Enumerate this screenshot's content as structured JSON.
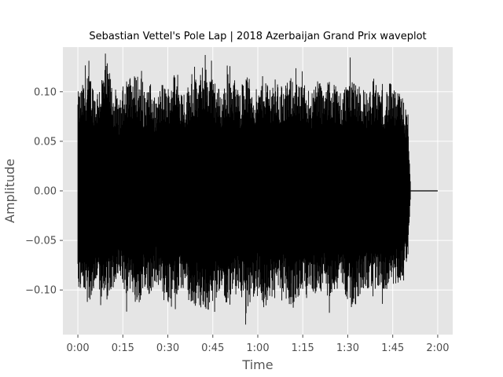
{
  "chart_data": {
    "type": "area",
    "title": "Sebastian Vettel's Pole Lap | 2018 Azerbaijan Grand Prix waveplot",
    "xlabel": "Time",
    "ylabel": "Amplitude",
    "x_unit": "seconds",
    "xlim": [
      -5,
      125
    ],
    "ylim": [
      -0.145,
      0.145
    ],
    "x_ticks": [
      {
        "value": 0,
        "label": "0:00"
      },
      {
        "value": 15,
        "label": "0:15"
      },
      {
        "value": 30,
        "label": "0:30"
      },
      {
        "value": 45,
        "label": "0:45"
      },
      {
        "value": 60,
        "label": "1:00"
      },
      {
        "value": 75,
        "label": "1:15"
      },
      {
        "value": 90,
        "label": "1:30"
      },
      {
        "value": 105,
        "label": "1:45"
      },
      {
        "value": 120,
        "label": "2:00"
      }
    ],
    "y_ticks": [
      {
        "value": 0.1,
        "label": "0.10"
      },
      {
        "value": 0.05,
        "label": "0.05"
      },
      {
        "value": 0.0,
        "label": "0.00"
      },
      {
        "value": -0.05,
        "label": "−0.05"
      },
      {
        "value": -0.1,
        "label": "−0.10"
      }
    ],
    "signal_end": 111,
    "x_end": 120,
    "envelope": {
      "x": [
        0,
        2,
        4,
        6,
        8,
        10,
        12,
        14,
        16,
        18,
        20,
        22,
        24,
        26,
        28,
        30,
        32,
        34,
        36,
        38,
        40,
        42,
        44,
        46,
        48,
        50,
        52,
        54,
        56,
        58,
        60,
        62,
        64,
        66,
        68,
        70,
        72,
        74,
        76,
        78,
        80,
        82,
        84,
        86,
        88,
        90,
        92,
        94,
        96,
        98,
        100,
        102,
        104,
        106,
        108,
        110,
        111
      ],
      "upper": [
        0.1,
        0.11,
        0.12,
        0.1,
        0.12,
        0.13,
        0.1,
        0.09,
        0.12,
        0.115,
        0.12,
        0.1,
        0.11,
        0.09,
        0.11,
        0.105,
        0.12,
        0.11,
        0.1,
        0.12,
        0.11,
        0.13,
        0.12,
        0.11,
        0.1,
        0.12,
        0.115,
        0.1,
        0.12,
        0.11,
        0.1,
        0.12,
        0.11,
        0.115,
        0.1,
        0.11,
        0.12,
        0.105,
        0.11,
        0.1,
        0.12,
        0.1,
        0.115,
        0.11,
        0.1,
        0.115,
        0.12,
        0.11,
        0.1,
        0.105,
        0.11,
        0.1,
        0.11,
        0.1,
        0.1,
        0.075,
        0.0
      ],
      "lower": [
        -0.1,
        -0.11,
        -0.11,
        -0.1,
        -0.12,
        -0.11,
        -0.1,
        -0.09,
        -0.11,
        -0.105,
        -0.12,
        -0.1,
        -0.11,
        -0.09,
        -0.11,
        -0.12,
        -0.11,
        -0.105,
        -0.1,
        -0.125,
        -0.11,
        -0.13,
        -0.12,
        -0.11,
        -0.1,
        -0.12,
        -0.11,
        -0.1,
        -0.125,
        -0.11,
        -0.1,
        -0.12,
        -0.11,
        -0.11,
        -0.1,
        -0.115,
        -0.12,
        -0.105,
        -0.11,
        -0.1,
        -0.11,
        -0.1,
        -0.11,
        -0.105,
        -0.1,
        -0.11,
        -0.12,
        -0.105,
        -0.1,
        -0.1,
        -0.1,
        -0.1,
        -0.1,
        -0.095,
        -0.09,
        -0.07,
        0.0
      ]
    },
    "colors": {
      "waveform": "#000000",
      "plot_background": "#e5e5e5",
      "grid": "#ffffff",
      "text": "#4d4d4d"
    },
    "grid": true
  }
}
